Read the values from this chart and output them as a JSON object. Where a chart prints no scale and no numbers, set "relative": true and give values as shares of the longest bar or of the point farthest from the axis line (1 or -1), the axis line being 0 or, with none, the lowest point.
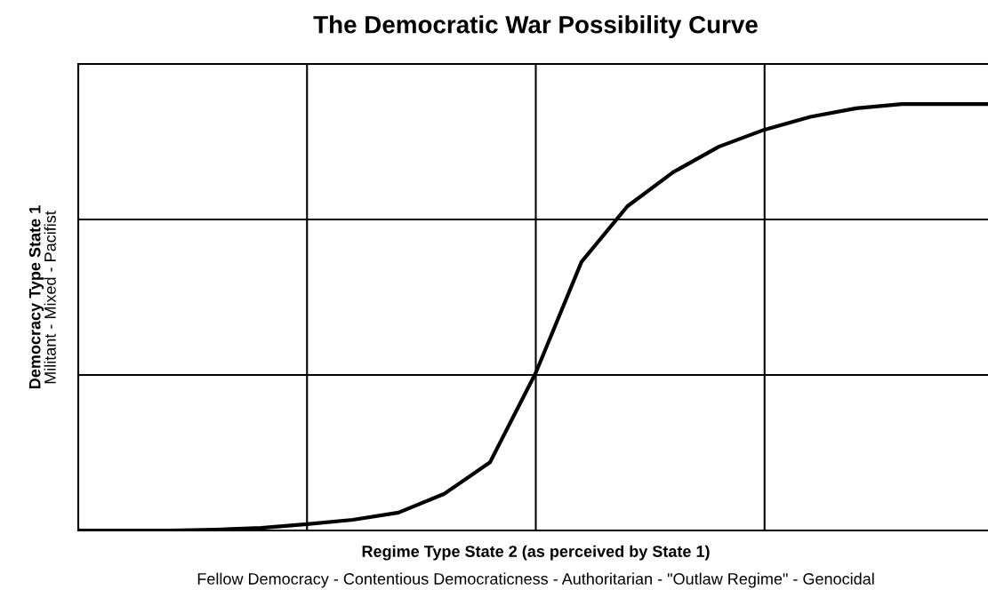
{
  "chart_data": {
    "type": "line",
    "title": "The Democratic War Possibility Curve",
    "xlabel": "Regime Type State 2 (as perceived by State 1)",
    "ylabel": "Democracy Type State 1",
    "annotations": [
      "Fellow Democracy - Contentious Democraticness - Authoritarian - \"Outlaw Regime\" - Genocidal",
      "Militant - Mixed - Pacifist"
    ],
    "relative": true,
    "grid": true,
    "tick_labels": false,
    "marker": "none",
    "line_style": "solid",
    "categories": [
      null,
      null,
      null,
      null,
      null,
      null,
      null,
      null,
      null,
      null,
      null,
      null,
      null,
      null,
      null,
      null,
      null,
      null,
      null,
      null,
      null
    ],
    "series": [
      {
        "color": "#000000",
        "values": [
          0,
          0,
          0,
          0.002,
          0.006,
          0.015,
          0.025,
          0.042,
          0.086,
          0.16,
          0.37,
          0.63,
          0.76,
          0.84,
          0.9,
          0.94,
          0.97,
          0.99,
          1,
          1,
          1
        ]
      }
    ]
  }
}
